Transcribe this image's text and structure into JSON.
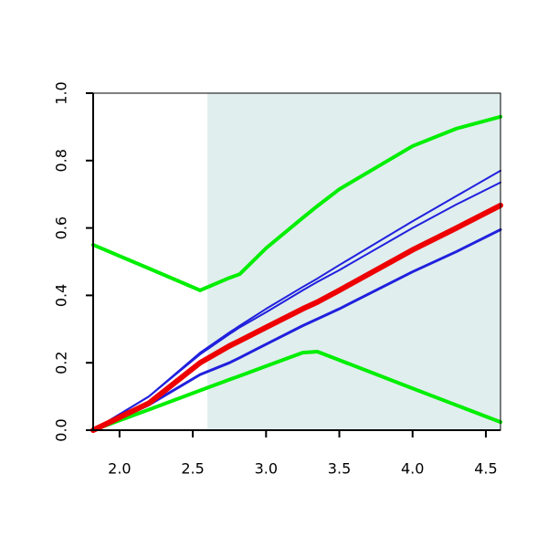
{
  "chart_data": {
    "type": "line",
    "x": [
      1.82,
      2.2,
      2.55,
      2.75,
      2.82,
      3.0,
      3.25,
      3.35,
      3.5,
      4.0,
      4.3,
      4.6
    ],
    "series": [
      {
        "color": "#00ee00",
        "width": 4,
        "values": [
          0.55,
          0.48,
          0.415,
          0.452,
          0.463,
          0.54,
          0.63,
          0.665,
          0.715,
          0.843,
          0.895,
          0.93
        ]
      },
      {
        "color": "#00ee00",
        "width": 4,
        "values": [
          0,
          0.061,
          0.118,
          0.15,
          0.161,
          0.19,
          0.23,
          0.233,
          0.208,
          0.124,
          0.074,
          0.024
        ]
      },
      {
        "color": "#2020dd",
        "width": 2,
        "values": [
          0,
          0.1,
          0.23,
          0.29,
          0.31,
          0.36,
          0.425,
          0.45,
          0.49,
          0.62,
          0.695,
          0.77
        ]
      },
      {
        "color": "#2020dd",
        "width": 2,
        "values": [
          0,
          0.1,
          0.225,
          0.285,
          0.305,
          0.35,
          0.415,
          0.44,
          0.475,
          0.6,
          0.67,
          0.735
        ]
      },
      {
        "color": "#2020dd",
        "width": 3,
        "values": [
          0,
          0.075,
          0.165,
          0.2,
          0.215,
          0.255,
          0.31,
          0.33,
          0.36,
          0.47,
          0.53,
          0.595
        ]
      },
      {
        "color": "#ee0000",
        "width": 6,
        "values": [
          0,
          0.08,
          0.2,
          0.25,
          0.265,
          0.305,
          0.36,
          0.38,
          0.415,
          0.535,
          0.6,
          0.667
        ]
      }
    ],
    "shaded_xrange": [
      2.6,
      4.6
    ],
    "shade_color": "#e0eeee",
    "xlim": [
      1.82,
      4.6
    ],
    "ylim": [
      0,
      1
    ],
    "xticks": [
      {
        "value": 2,
        "label": "2.0"
      },
      2.5,
      {
        "value": 3,
        "label": "3.0"
      },
      3.5,
      {
        "value": 4,
        "label": "4.0"
      },
      4.5
    ],
    "yticks": [
      {
        "value": 0,
        "label": "0.0"
      },
      0.2,
      0.4,
      0.6,
      0.8,
      {
        "value": 1,
        "label": "1.0"
      }
    ]
  }
}
